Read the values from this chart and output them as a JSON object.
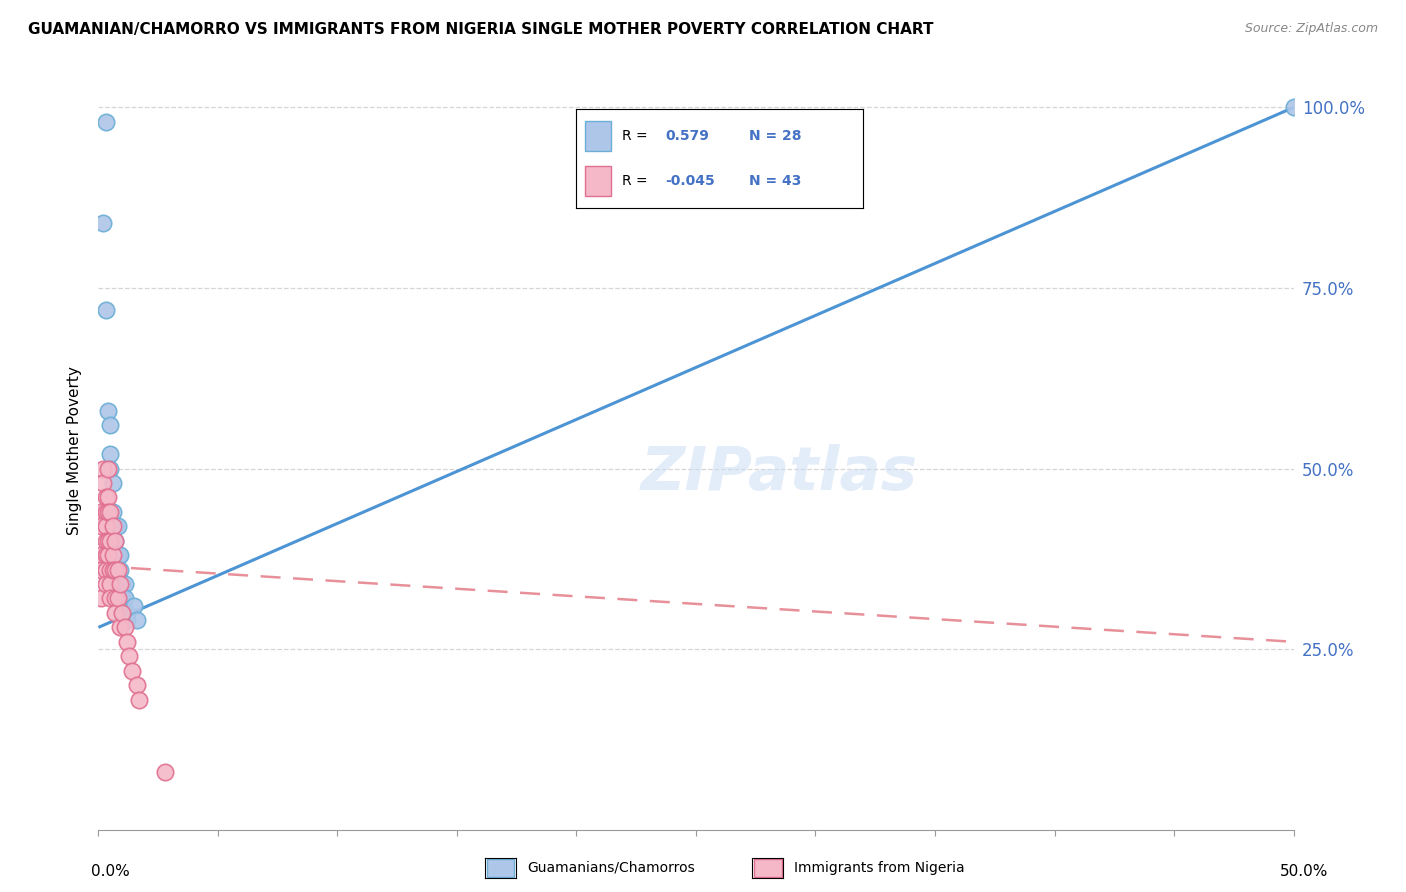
{
  "title": "GUAMANIAN/CHAMORRO VS IMMIGRANTS FROM NIGERIA SINGLE MOTHER POVERTY CORRELATION CHART",
  "source": "Source: ZipAtlas.com",
  "ylabel": "Single Mother Poverty",
  "legend_label_blue": "Guamanians/Chamorros",
  "legend_label_pink": "Immigrants from Nigeria",
  "blue_color": "#aec6e8",
  "pink_color": "#f4b8c8",
  "blue_edge_color": "#6baed6",
  "pink_edge_color": "#e07090",
  "blue_line_color": "#4d94d5",
  "pink_line_color": "#e8909a",
  "r_blue": 0.579,
  "n_blue": 28,
  "r_pink": -0.045,
  "n_pink": 43,
  "blue_dots": [
    [
      0.003,
      0.98
    ],
    [
      0.002,
      0.84
    ],
    [
      0.003,
      0.72
    ],
    [
      0.004,
      0.58
    ],
    [
      0.005,
      0.56
    ],
    [
      0.005,
      0.52
    ],
    [
      0.005,
      0.5
    ],
    [
      0.006,
      0.48
    ],
    [
      0.006,
      0.44
    ],
    [
      0.007,
      0.42
    ],
    [
      0.007,
      0.4
    ],
    [
      0.007,
      0.38
    ],
    [
      0.007,
      0.36
    ],
    [
      0.008,
      0.42
    ],
    [
      0.008,
      0.38
    ],
    [
      0.008,
      0.34
    ],
    [
      0.009,
      0.38
    ],
    [
      0.009,
      0.36
    ],
    [
      0.01,
      0.34
    ],
    [
      0.01,
      0.32
    ],
    [
      0.01,
      0.3
    ],
    [
      0.011,
      0.34
    ],
    [
      0.011,
      0.32
    ],
    [
      0.012,
      0.3
    ],
    [
      0.012,
      0.29
    ],
    [
      0.015,
      0.31
    ],
    [
      0.016,
      0.29
    ],
    [
      0.5,
      1.0
    ]
  ],
  "pink_dots": [
    [
      0.001,
      0.44
    ],
    [
      0.001,
      0.42
    ],
    [
      0.001,
      0.38
    ],
    [
      0.001,
      0.36
    ],
    [
      0.001,
      0.32
    ],
    [
      0.002,
      0.5
    ],
    [
      0.002,
      0.48
    ],
    [
      0.003,
      0.46
    ],
    [
      0.003,
      0.44
    ],
    [
      0.003,
      0.42
    ],
    [
      0.003,
      0.4
    ],
    [
      0.003,
      0.38
    ],
    [
      0.003,
      0.36
    ],
    [
      0.003,
      0.34
    ],
    [
      0.004,
      0.5
    ],
    [
      0.004,
      0.46
    ],
    [
      0.004,
      0.44
    ],
    [
      0.004,
      0.4
    ],
    [
      0.004,
      0.38
    ],
    [
      0.005,
      0.44
    ],
    [
      0.005,
      0.4
    ],
    [
      0.005,
      0.36
    ],
    [
      0.005,
      0.34
    ],
    [
      0.005,
      0.32
    ],
    [
      0.006,
      0.42
    ],
    [
      0.006,
      0.38
    ],
    [
      0.006,
      0.36
    ],
    [
      0.007,
      0.4
    ],
    [
      0.007,
      0.36
    ],
    [
      0.007,
      0.32
    ],
    [
      0.007,
      0.3
    ],
    [
      0.008,
      0.36
    ],
    [
      0.008,
      0.32
    ],
    [
      0.009,
      0.34
    ],
    [
      0.009,
      0.28
    ],
    [
      0.01,
      0.3
    ],
    [
      0.011,
      0.28
    ],
    [
      0.012,
      0.26
    ],
    [
      0.013,
      0.24
    ],
    [
      0.014,
      0.22
    ],
    [
      0.016,
      0.2
    ],
    [
      0.017,
      0.18
    ],
    [
      0.028,
      0.08
    ]
  ],
  "xmin": 0.0,
  "xmax": 0.5,
  "ymin": 0.0,
  "ymax": 1.05,
  "blue_line_x": [
    0.0,
    0.5
  ],
  "blue_line_y": [
    0.28,
    1.0
  ],
  "pink_line_x": [
    0.0,
    0.5
  ],
  "pink_line_y": [
    0.365,
    0.26
  ]
}
